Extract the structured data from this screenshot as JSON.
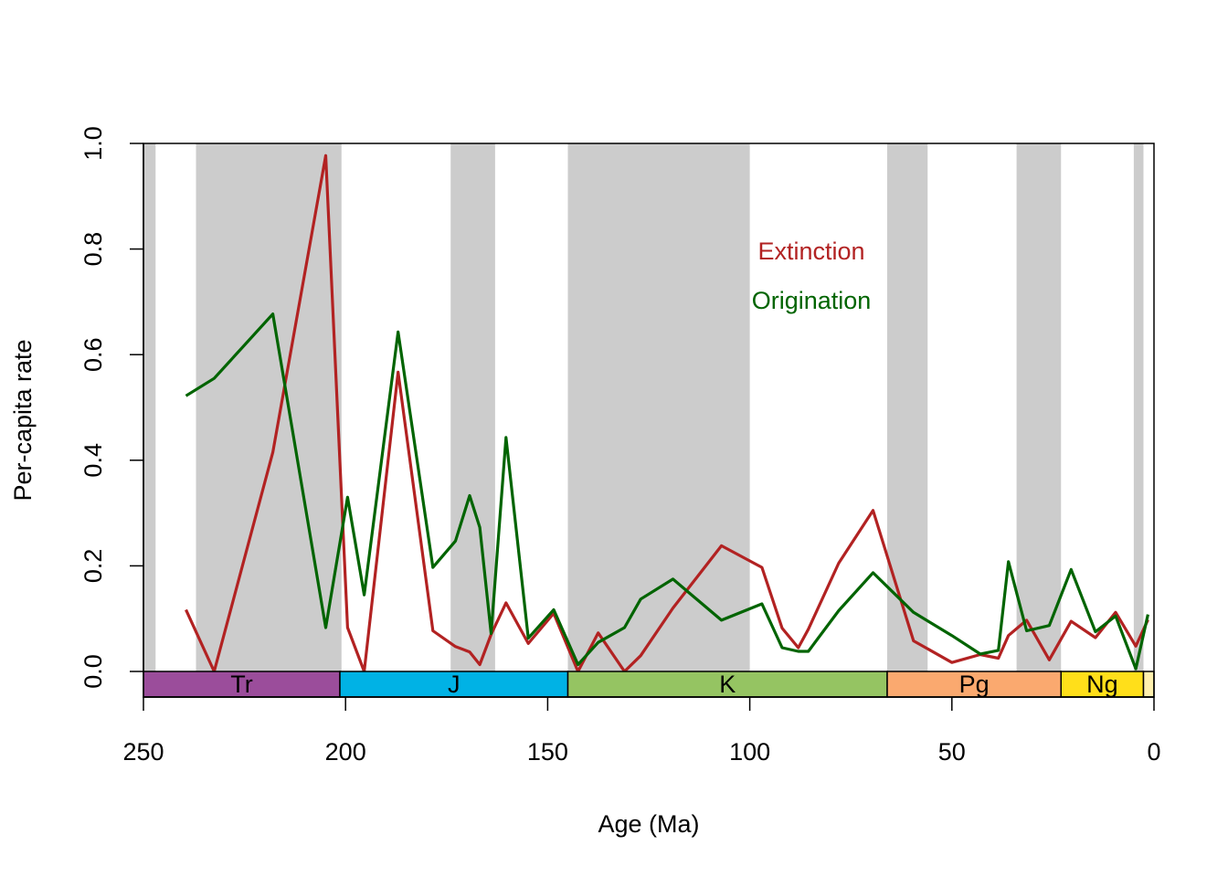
{
  "chart_data": {
    "type": "line",
    "xlabel": "Age (Ma)",
    "ylabel": "Per-capita rate",
    "xlim": [
      250,
      0
    ],
    "ylim": [
      0,
      1
    ],
    "x_ticks": [
      "250",
      "200",
      "150",
      "100",
      "50",
      "0"
    ],
    "y_ticks": [
      "0.0",
      "0.2",
      "0.4",
      "0.6",
      "0.8",
      "1.0"
    ],
    "grid": false,
    "legend_position": "top-right (inside plot)",
    "shaded_intervals_ma": [
      [
        250,
        247
      ],
      [
        237,
        201
      ],
      [
        174,
        163
      ],
      [
        145,
        100
      ],
      [
        66,
        56
      ],
      [
        34,
        23
      ],
      [
        5,
        2.6
      ]
    ],
    "shading_color": "#CCCCCC",
    "periods": [
      {
        "label": "Tr",
        "start": 251.9,
        "end": 201.4,
        "color": "#9B4D9B"
      },
      {
        "label": "J",
        "start": 201.4,
        "end": 145.0,
        "color": "#00B2E5"
      },
      {
        "label": "K",
        "start": 145.0,
        "end": 66.0,
        "color": "#95C462"
      },
      {
        "label": "Pg",
        "start": 66.0,
        "end": 23.0,
        "color": "#FAA96F"
      },
      {
        "label": "Ng",
        "start": 23.0,
        "end": 2.6,
        "color": "#FFDF1A"
      },
      {
        "label": "",
        "start": 2.6,
        "end": 0.0,
        "color": "#FFF0AE"
      }
    ],
    "series": [
      {
        "name": "Extinction",
        "color": "#B22222",
        "x": [
          239.5,
          232.5,
          218.0,
          204.9,
          199.5,
          195.4,
          187.0,
          178.4,
          172.8,
          169.3,
          166.8,
          164.0,
          160.3,
          154.8,
          148.5,
          142.5,
          137.5,
          131.0,
          127.0,
          119.0,
          107.0,
          97.0,
          92.0,
          88.0,
          85.5,
          78.0,
          69.5,
          59.5,
          50.0,
          43.0,
          38.5,
          36.0,
          31.5,
          25.9,
          20.5,
          14.5,
          9.5,
          4.5,
          1.5
        ],
        "y": [
          0.117,
          0.0,
          0.415,
          0.977,
          0.083,
          0.0,
          0.567,
          0.077,
          0.047,
          0.037,
          0.013,
          0.07,
          0.13,
          0.053,
          0.11,
          0.0,
          0.073,
          0.0,
          0.03,
          0.12,
          0.238,
          0.197,
          0.082,
          0.045,
          0.08,
          0.205,
          0.305,
          0.058,
          0.017,
          0.032,
          0.025,
          0.068,
          0.097,
          0.022,
          0.095,
          0.064,
          0.112,
          0.048,
          0.098
        ]
      },
      {
        "name": "Origination",
        "color": "#006400",
        "x": [
          239.5,
          232.5,
          218.0,
          204.9,
          199.5,
          195.4,
          187.0,
          178.4,
          172.8,
          169.3,
          166.8,
          164.0,
          160.3,
          154.8,
          148.5,
          142.5,
          137.5,
          131.0,
          127.0,
          119.0,
          107.0,
          97.0,
          92.0,
          88.0,
          85.5,
          78.0,
          69.5,
          59.5,
          50.0,
          43.0,
          38.5,
          36.0,
          31.5,
          25.9,
          20.5,
          14.5,
          9.5,
          4.5,
          1.5
        ],
        "y": [
          0.522,
          0.555,
          0.677,
          0.083,
          0.33,
          0.145,
          0.643,
          0.197,
          0.247,
          0.333,
          0.273,
          0.072,
          0.443,
          0.063,
          0.117,
          0.013,
          0.055,
          0.083,
          0.137,
          0.175,
          0.097,
          0.128,
          0.045,
          0.038,
          0.038,
          0.115,
          0.187,
          0.112,
          0.068,
          0.033,
          0.04,
          0.208,
          0.077,
          0.087,
          0.193,
          0.075,
          0.105,
          0.005,
          0.108
        ]
      }
    ]
  }
}
